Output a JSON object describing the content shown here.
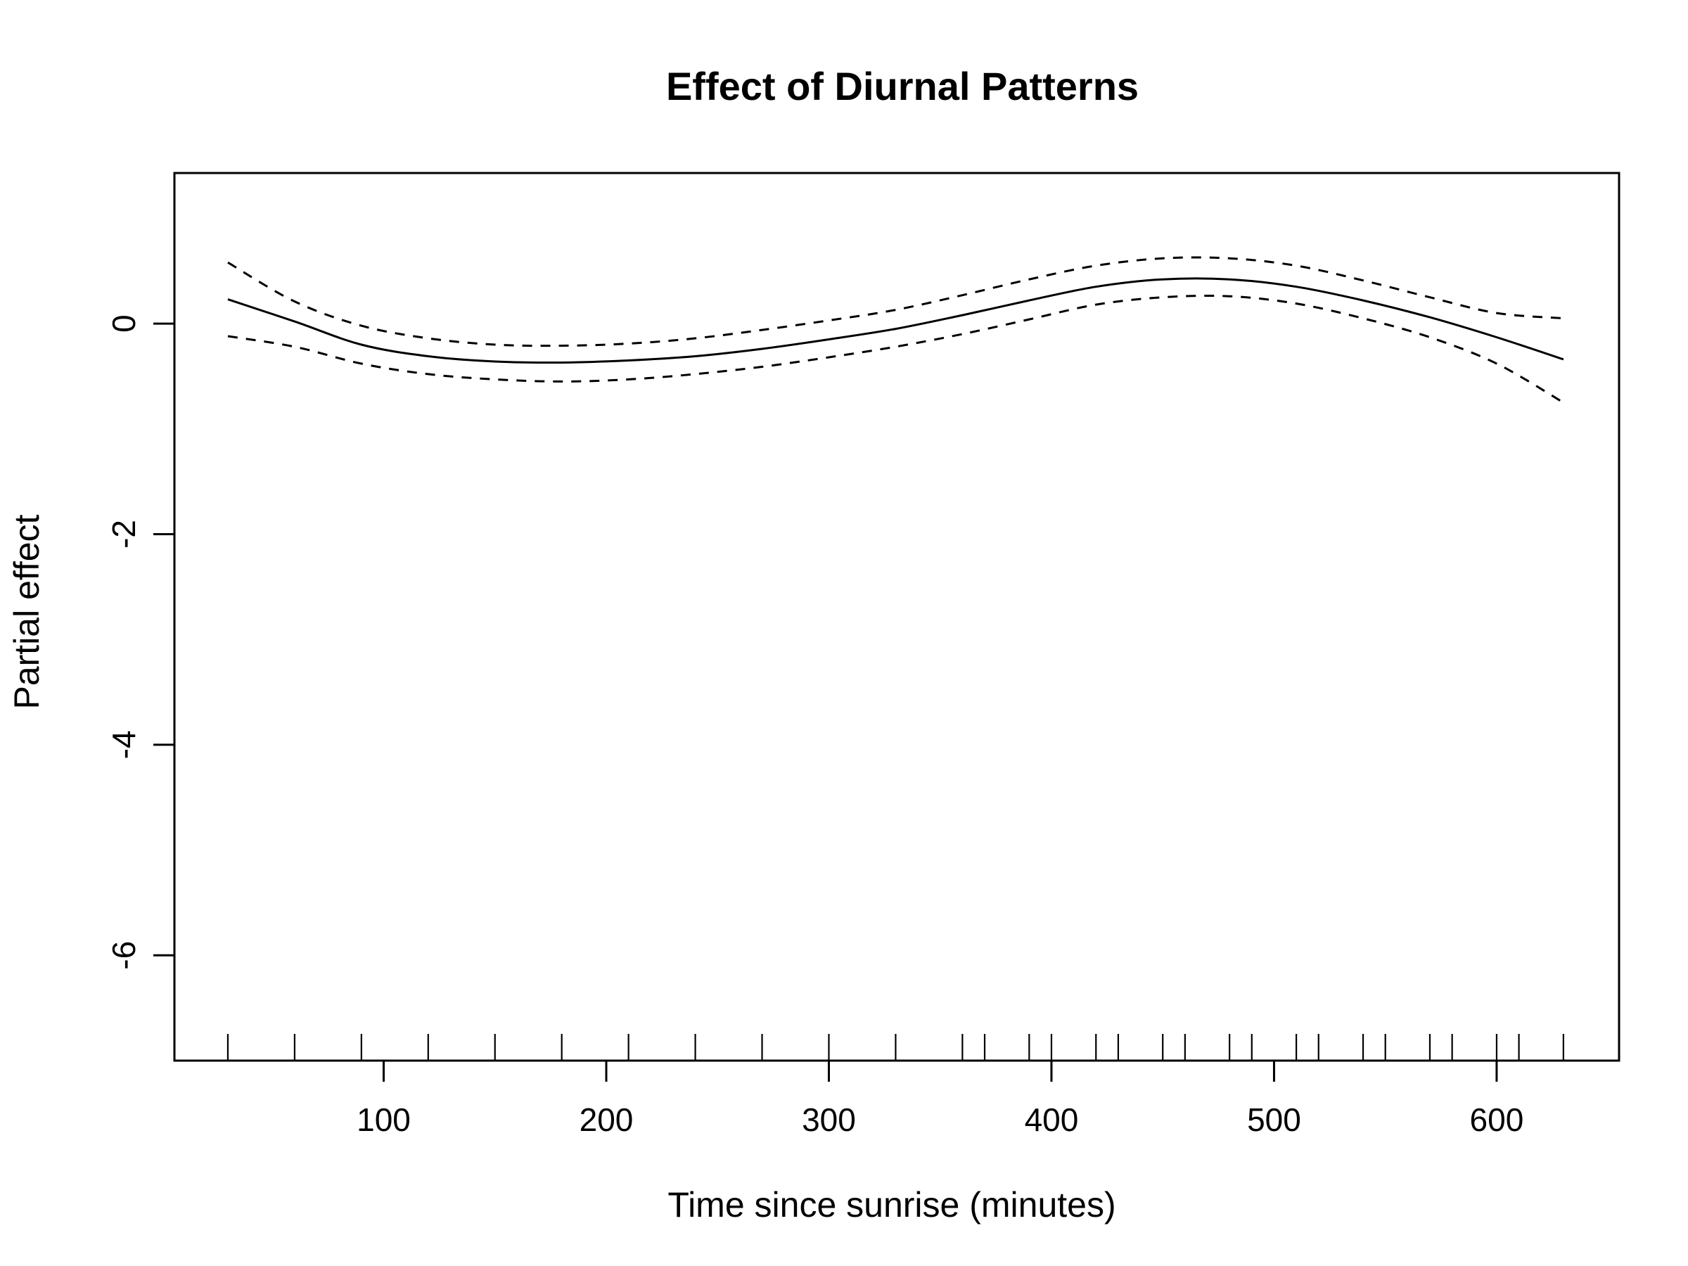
{
  "chart_data": {
    "type": "line",
    "title": "Effect of Diurnal Patterns",
    "xlabel": "Time since sunrise (minutes)",
    "ylabel": "Partial effect",
    "xlim": [
      6,
      655
    ],
    "ylim": [
      -7.0,
      1.43
    ],
    "x_ticks": [
      100,
      200,
      300,
      400,
      500,
      600
    ],
    "x_tick_labels": [
      "100",
      "200",
      "300",
      "400",
      "500",
      "600"
    ],
    "y_ticks": [
      0,
      -2,
      -4,
      -6
    ],
    "y_tick_labels": [
      "0",
      "-2",
      "-4",
      "-6"
    ],
    "rug_x": [
      30,
      60,
      90,
      120,
      150,
      180,
      210,
      240,
      270,
      300,
      330,
      360,
      370,
      390,
      400,
      420,
      430,
      450,
      460,
      480,
      490,
      510,
      520,
      540,
      550,
      570,
      580,
      600,
      610,
      630
    ],
    "grid": false,
    "legend": "none",
    "series": [
      {
        "role": "estimate",
        "style": "solid",
        "x": [
          30,
          60,
          90,
          120,
          150,
          180,
          210,
          240,
          270,
          300,
          330,
          360,
          390,
          420,
          450,
          480,
          510,
          540,
          570,
          600,
          630
        ],
        "y": [
          0.23,
          0.02,
          -0.2,
          -0.31,
          -0.36,
          -0.37,
          -0.35,
          -0.31,
          -0.24,
          -0.15,
          -0.05,
          0.08,
          0.22,
          0.35,
          0.42,
          0.42,
          0.35,
          0.22,
          0.06,
          -0.13,
          -0.34
        ]
      },
      {
        "role": "upper",
        "style": "dashed",
        "x": [
          30,
          60,
          90,
          120,
          150,
          180,
          210,
          240,
          270,
          300,
          330,
          360,
          390,
          420,
          450,
          480,
          510,
          540,
          570,
          600,
          630
        ],
        "y": [
          0.58,
          0.21,
          -0.02,
          -0.14,
          -0.2,
          -0.21,
          -0.19,
          -0.14,
          -0.06,
          0.03,
          0.13,
          0.27,
          0.42,
          0.55,
          0.62,
          0.62,
          0.55,
          0.41,
          0.25,
          0.1,
          0.05
        ]
      },
      {
        "role": "lower",
        "style": "dashed",
        "x": [
          30,
          60,
          90,
          120,
          150,
          180,
          210,
          240,
          270,
          300,
          330,
          360,
          390,
          420,
          450,
          480,
          510,
          540,
          570,
          600,
          630
        ],
        "y": [
          -0.12,
          -0.22,
          -0.38,
          -0.48,
          -0.53,
          -0.55,
          -0.53,
          -0.48,
          -0.41,
          -0.32,
          -0.22,
          -0.1,
          0.04,
          0.18,
          0.25,
          0.26,
          0.19,
          0.05,
          -0.13,
          -0.38,
          -0.75
        ]
      }
    ]
  }
}
